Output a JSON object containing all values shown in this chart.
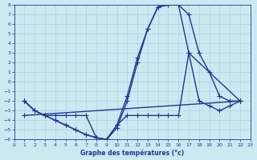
{
  "xlabel": "Graphe des températures (°c)",
  "xlim": [
    0,
    23
  ],
  "ylim": [
    -6,
    8
  ],
  "yticks": [
    -6,
    -5,
    -4,
    -3,
    -2,
    -1,
    0,
    1,
    2,
    3,
    4,
    5,
    6,
    7,
    8
  ],
  "xticks": [
    0,
    1,
    2,
    3,
    4,
    5,
    6,
    7,
    8,
    9,
    10,
    11,
    12,
    13,
    14,
    15,
    16,
    17,
    18,
    19,
    20,
    21,
    22,
    23
  ],
  "bg_color": "#cce8f0",
  "grid_color": "#9ecfdf",
  "line_color": "#1e3896",
  "line_width": 1.0,
  "marker": "+",
  "marker_size": 4,
  "curve1_x": [
    1,
    2,
    3,
    4,
    5,
    6,
    7,
    8,
    9,
    10,
    11,
    12,
    13,
    14,
    15,
    16,
    17,
    22
  ],
  "curve1_y": [
    -2,
    -3,
    -3.5,
    -4,
    -4.5,
    -5,
    -5.5,
    -5.8,
    -6,
    -4.8,
    -2,
    2,
    5.5,
    7.8,
    8,
    8,
    3,
    -2
  ],
  "curve2_x": [
    1,
    2,
    3,
    4,
    5,
    6,
    7,
    8,
    9,
    10,
    11,
    12,
    13,
    14,
    15,
    16,
    17,
    18,
    19,
    20,
    21,
    22
  ],
  "curve2_y": [
    -2,
    -3,
    -3.5,
    -4,
    -4.5,
    -5,
    -5.5,
    -5.8,
    -6,
    -4.5,
    -1.5,
    2.5,
    5.5,
    7.8,
    8,
    8,
    7,
    3,
    1,
    -1.5,
    -2,
    -2
  ],
  "curve3_x": [
    1,
    2,
    3,
    4,
    5,
    6,
    7,
    8,
    9,
    10,
    11,
    12,
    13,
    14,
    15,
    16,
    17,
    18,
    19,
    20,
    21,
    22
  ],
  "curve3_y": [
    -2,
    -3,
    -3.5,
    -3.5,
    -3.5,
    -3.5,
    -3.5,
    -5.8,
    -6,
    -4.5,
    -3.5,
    -3.5,
    -3.5,
    -3.5,
    -3.5,
    -3.5,
    3,
    -2,
    -2.5,
    -3,
    -2.5,
    -2
  ],
  "curve4_x": [
    1,
    2,
    3,
    4,
    5,
    6,
    7,
    8,
    9,
    10,
    11,
    12,
    13,
    14,
    15,
    16,
    17,
    18,
    19,
    20,
    21,
    22
  ],
  "curve4_y": [
    -2,
    -3,
    -3.5,
    -3.5,
    -3.5,
    -3.5,
    -3.5,
    -3.5,
    -3.5,
    -3.5,
    -3.5,
    -3.5,
    -3.5,
    -3.5,
    -3.5,
    -3.5,
    -3.5,
    -3.0,
    -2.8,
    -2.5,
    -2.2,
    -2
  ]
}
